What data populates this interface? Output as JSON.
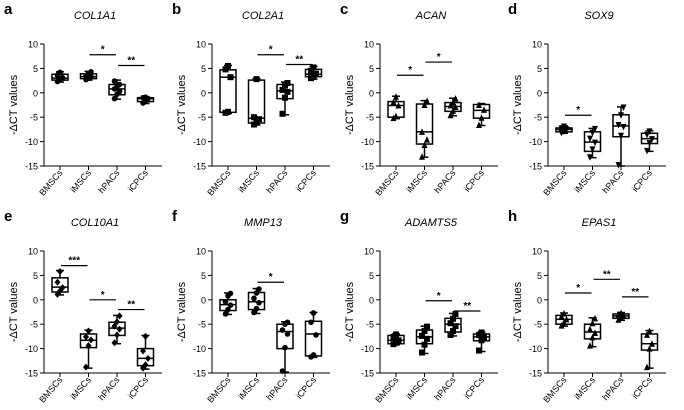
{
  "figure": {
    "y_axis_label": "-ΔCT values",
    "categories": [
      "BMSCs",
      "iMSCs",
      "hPACs",
      "iCPCs"
    ],
    "y_ticks": [
      10,
      5,
      0,
      -5,
      -10,
      -15
    ],
    "colors": {
      "box_fill": "#ffffff",
      "stroke": "#000000",
      "point": "#000000"
    }
  },
  "chart_data": [
    {
      "type": "boxplot",
      "panel_letter": "a",
      "title": "COL1A1",
      "ylabel": "-ΔCT values",
      "ylim": [
        -15,
        10
      ],
      "marker": "circle",
      "categories": [
        "BMSCs",
        "iMSCs",
        "hPACs",
        "iCPCs"
      ],
      "boxes": [
        {
          "min": 2.2,
          "q1": 2.6,
          "median": 3.0,
          "q3": 3.8,
          "max": 4.3
        },
        {
          "min": 2.6,
          "q1": 2.9,
          "median": 3.3,
          "q3": 3.9,
          "max": 4.4
        },
        {
          "min": -1.3,
          "q1": -0.4,
          "median": 0.8,
          "q3": 1.7,
          "max": 2.6
        },
        {
          "min": -2.2,
          "q1": -1.8,
          "median": -1.2,
          "q3": -1.0,
          "max": -0.8
        }
      ],
      "points": [
        [
          2.3,
          2.7,
          3.1,
          3.6,
          4.2
        ],
        [
          2.7,
          3.0,
          3.3,
          3.5,
          4.0,
          4.3
        ],
        [
          -1.2,
          -0.3,
          0.3,
          0.8,
          1.2,
          1.7,
          2.4
        ],
        [
          -2.1,
          -1.6,
          -1.2,
          -1.0,
          -0.9
        ]
      ],
      "significance": [
        {
          "from": 1,
          "to": 2,
          "label": "*",
          "y": 7.8
        },
        {
          "from": 2,
          "to": 3,
          "label": "**",
          "y": 5.6
        }
      ]
    },
    {
      "type": "boxplot",
      "panel_letter": "b",
      "title": "COL2A1",
      "ylabel": "-ΔCT values",
      "ylim": [
        -15,
        10
      ],
      "marker": "square",
      "categories": [
        "BMSCs",
        "iMSCs",
        "hPACs",
        "iCPCs"
      ],
      "boxes": [
        {
          "min": -4.2,
          "q1": -4.0,
          "median": 3.2,
          "q3": 4.7,
          "max": 5.6
        },
        {
          "min": -6.6,
          "q1": -6.2,
          "median": -5.2,
          "q3": 2.6,
          "max": 2.9
        },
        {
          "min": -4.5,
          "q1": -1.2,
          "median": 0.4,
          "q3": 1.7,
          "max": 2.2
        },
        {
          "min": 2.8,
          "q1": 3.3,
          "median": 3.8,
          "q3": 4.8,
          "max": 5.4
        }
      ],
      "points": [
        [
          -4.1,
          -3.9,
          3.2,
          4.8,
          5.5
        ],
        [
          -6.5,
          -6.0,
          -5.4,
          -5.0,
          2.8
        ],
        [
          -4.3,
          -1.0,
          0.2,
          0.6,
          1.5,
          2.0
        ],
        [
          3.0,
          3.5,
          3.9,
          4.5,
          5.2
        ]
      ],
      "significance": [
        {
          "from": 1,
          "to": 2,
          "label": "*",
          "y": 7.8
        },
        {
          "from": 2,
          "to": 3,
          "label": "**",
          "y": 5.8
        }
      ]
    },
    {
      "type": "boxplot",
      "panel_letter": "c",
      "title": "ACAN",
      "ylabel": "-ΔCT values",
      "ylim": [
        -15,
        10
      ],
      "marker": "triangle-up",
      "categories": [
        "BMSCs",
        "iMSCs",
        "hPACs",
        "iCPCs"
      ],
      "boxes": [
        {
          "min": -5.3,
          "q1": -5.0,
          "median": -2.6,
          "q3": -1.8,
          "max": -0.7
        },
        {
          "min": -13.2,
          "q1": -10.5,
          "median": -8.0,
          "q3": -2.3,
          "max": -1.6
        },
        {
          "min": -4.7,
          "q1": -3.8,
          "median": -2.8,
          "q3": -2.0,
          "max": -1.1
        },
        {
          "min": -6.7,
          "q1": -5.2,
          "median": -3.6,
          "q3": -2.4,
          "max": -2.2
        }
      ],
      "points": [
        [
          -5.2,
          -4.8,
          -2.6,
          -1.9,
          -0.8
        ],
        [
          -13.1,
          -10.7,
          -9.6,
          -8.0,
          -2.5,
          -1.7
        ],
        [
          -4.6,
          -3.7,
          -2.9,
          -2.6,
          -2.0,
          -1.2
        ],
        [
          -6.6,
          -5.1,
          -3.5,
          -2.5
        ]
      ],
      "significance": [
        {
          "from": 0,
          "to": 1,
          "label": "*",
          "y": 3.6
        },
        {
          "from": 1,
          "to": 2,
          "label": "*",
          "y": 6.3
        }
      ]
    },
    {
      "type": "boxplot",
      "panel_letter": "d",
      "title": "SOX9",
      "ylabel": "-ΔCT values",
      "ylim": [
        -15,
        10
      ],
      "marker": "triangle-down",
      "categories": [
        "BMSCs",
        "iMSCs",
        "hPACs",
        "iCPCs"
      ],
      "boxes": [
        {
          "min": -8.3,
          "q1": -8.0,
          "median": -7.5,
          "q3": -7.2,
          "max": -6.8
        },
        {
          "min": -13.3,
          "q1": -12.0,
          "median": -10.1,
          "q3": -8.0,
          "max": -7.3
        },
        {
          "min": -15.0,
          "q1": -9.0,
          "median": -6.8,
          "q3": -4.5,
          "max": -2.9
        },
        {
          "min": -12.0,
          "q1": -10.4,
          "median": -9.4,
          "q3": -8.3,
          "max": -7.8
        }
      ],
      "points": [
        [
          -8.2,
          -7.9,
          -7.5,
          -7.3,
          -6.9
        ],
        [
          -13.2,
          -11.6,
          -10.2,
          -9.4,
          -8.2,
          -7.4
        ],
        [
          -14.8,
          -8.8,
          -7.0,
          -6.6,
          -4.6,
          -3.0
        ],
        [
          -11.9,
          -10.3,
          -9.5,
          -8.6,
          -7.9
        ]
      ],
      "significance": [
        {
          "from": 0,
          "to": 1,
          "label": "*",
          "y": -4.6
        }
      ]
    },
    {
      "type": "boxplot",
      "panel_letter": "e",
      "title": "COL10A1",
      "ylabel": "-ΔCT values",
      "ylim": [
        -15,
        10
      ],
      "marker": "diamond",
      "categories": [
        "BMSCs",
        "iMSCs",
        "hPACs",
        "iCPCs"
      ],
      "boxes": [
        {
          "min": 1.0,
          "q1": 1.6,
          "median": 2.6,
          "q3": 4.5,
          "max": 6.0
        },
        {
          "min": -14.0,
          "q1": -9.8,
          "median": -8.3,
          "q3": -7.0,
          "max": -6.2
        },
        {
          "min": -9.0,
          "q1": -7.3,
          "median": -5.8,
          "q3": -4.6,
          "max": -3.2
        },
        {
          "min": -14.2,
          "q1": -13.5,
          "median": -12.0,
          "q3": -10.0,
          "max": -7.3
        }
      ],
      "points": [
        [
          1.1,
          1.8,
          2.5,
          3.6,
          5.8
        ],
        [
          -13.8,
          -9.4,
          -8.2,
          -7.6,
          -6.4
        ],
        [
          -8.8,
          -7.2,
          -6.0,
          -5.4,
          -4.5,
          -3.3
        ],
        [
          -14.0,
          -13.3,
          -12.0,
          -10.5,
          -7.5
        ]
      ],
      "significance": [
        {
          "from": 0,
          "to": 1,
          "label": "***",
          "y": 7.0
        },
        {
          "from": 1,
          "to": 2,
          "label": "*",
          "y": 0.0
        },
        {
          "from": 2,
          "to": 3,
          "label": "**",
          "y": -2.0
        }
      ]
    },
    {
      "type": "boxplot",
      "panel_letter": "f",
      "title": "MMP13",
      "ylabel": "-ΔCT values",
      "ylim": [
        -15,
        10
      ],
      "marker": "circle",
      "categories": [
        "BMSCs",
        "iMSCs",
        "hPACs",
        "iCPCs"
      ],
      "boxes": [
        {
          "min": -3.0,
          "q1": -2.2,
          "median": -1.0,
          "q3": 0.0,
          "max": 1.4
        },
        {
          "min": -2.8,
          "q1": -2.0,
          "median": -0.4,
          "q3": 1.5,
          "max": 2.3
        },
        {
          "min": -14.8,
          "q1": -10.0,
          "median": -6.5,
          "q3": -5.0,
          "max": -4.5
        },
        {
          "min": -11.8,
          "q1": -11.5,
          "median": -7.0,
          "q3": -4.4,
          "max": -2.6
        }
      ],
      "points": [
        [
          -2.9,
          -2.0,
          -1.1,
          -0.4,
          0.8,
          1.3
        ],
        [
          -2.6,
          -1.8,
          -0.6,
          0.3,
          1.4,
          2.2
        ],
        [
          -14.6,
          -9.8,
          -7.0,
          -6.2,
          -5.0,
          -4.6
        ],
        [
          -11.7,
          -11.3,
          -7.2,
          -4.6,
          -2.7
        ]
      ],
      "significance": [
        {
          "from": 1,
          "to": 2,
          "label": "*",
          "y": 3.6
        }
      ]
    },
    {
      "type": "boxplot",
      "panel_letter": "g",
      "title": "ADAMTS5",
      "ylabel": "-ΔCT values",
      "ylim": [
        -15,
        10
      ],
      "marker": "square",
      "categories": [
        "BMSCs",
        "iMSCs",
        "hPACs",
        "iCPCs"
      ],
      "boxes": [
        {
          "min": -9.2,
          "q1": -9.0,
          "median": -8.3,
          "q3": -7.3,
          "max": -7.0
        },
        {
          "min": -11.0,
          "q1": -9.0,
          "median": -7.6,
          "q3": -6.2,
          "max": -5.4
        },
        {
          "min": -7.4,
          "q1": -6.6,
          "median": -5.0,
          "q3": -3.8,
          "max": -2.8
        },
        {
          "min": -10.6,
          "q1": -8.4,
          "median": -7.6,
          "q3": -7.0,
          "max": -6.6
        }
      ],
      "points": [
        [
          -9.1,
          -8.8,
          -8.3,
          -7.6,
          -7.1
        ],
        [
          -10.8,
          -9.2,
          -8.0,
          -7.4,
          -6.4,
          -5.5
        ],
        [
          -7.2,
          -6.4,
          -5.4,
          -4.8,
          -3.9,
          -2.9
        ],
        [
          -10.4,
          -8.3,
          -7.7,
          -7.2,
          -6.7
        ]
      ],
      "significance": [
        {
          "from": 1,
          "to": 2,
          "label": "*",
          "y": -0.2
        },
        {
          "from": 2,
          "to": 3,
          "label": "**",
          "y": -2.3
        }
      ]
    },
    {
      "type": "boxplot",
      "panel_letter": "h",
      "title": "EPAS1",
      "ylabel": "-ΔCT values",
      "ylim": [
        -15,
        10
      ],
      "marker": "triangle-up",
      "categories": [
        "BMSCs",
        "iMSCs",
        "hPACs",
        "iCPCs"
      ],
      "boxes": [
        {
          "min": -5.4,
          "q1": -5.0,
          "median": -4.0,
          "q3": -3.2,
          "max": -2.7
        },
        {
          "min": -9.6,
          "q1": -8.0,
          "median": -6.6,
          "q3": -5.0,
          "max": -3.7
        },
        {
          "min": -4.2,
          "q1": -3.8,
          "median": -3.3,
          "q3": -2.9,
          "max": -2.6
        },
        {
          "min": -14.0,
          "q1": -10.3,
          "median": -9.0,
          "q3": -7.0,
          "max": -6.3
        }
      ],
      "points": [
        [
          -5.3,
          -4.6,
          -4.0,
          -3.4,
          -2.8
        ],
        [
          -9.4,
          -7.7,
          -6.8,
          -6.0,
          -4.8,
          -3.8
        ],
        [
          -4.1,
          -3.6,
          -3.3,
          -3.0,
          -2.7
        ],
        [
          -13.8,
          -10.0,
          -9.0,
          -7.2,
          -6.4
        ]
      ],
      "significance": [
        {
          "from": 0,
          "to": 1,
          "label": "*",
          "y": 1.4
        },
        {
          "from": 1,
          "to": 2,
          "label": "**",
          "y": 4.2
        },
        {
          "from": 2,
          "to": 3,
          "label": "**",
          "y": 0.6
        }
      ]
    }
  ]
}
